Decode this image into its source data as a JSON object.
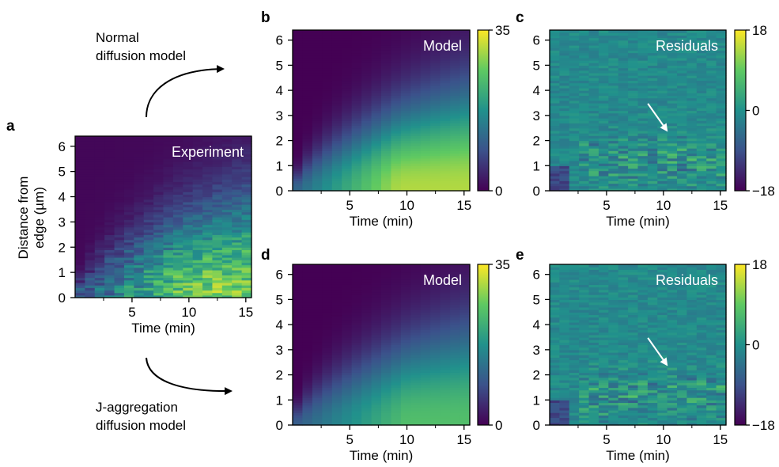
{
  "panel_labels": {
    "a": "a",
    "b": "b",
    "c": "c",
    "d": "d",
    "e": "e"
  },
  "annotations": {
    "normal_line1": "Normal",
    "normal_line2": "diffusion model",
    "jagg_line1": "J-aggregation",
    "jagg_line2": "diffusion model"
  },
  "colormap": "viridis",
  "colors": {
    "viridis_low": "#440154",
    "viridis_mid": "#21918c",
    "viridis_high": "#fde725",
    "arrow": "#ffffff",
    "text": "#000000"
  },
  "chart_data": [
    {
      "id": "a",
      "type": "heatmap",
      "title": "Experiment",
      "xlabel": "Time (min)",
      "ylabel_line1": "Distance from",
      "ylabel_line2": "edge (µm)",
      "xlim": [
        0,
        15.5
      ],
      "ylim": [
        0,
        6.4
      ],
      "xticks": [
        5,
        10,
        15
      ],
      "yticks": [
        0,
        1,
        2,
        3,
        4,
        5,
        6
      ],
      "colorbar": null
    },
    {
      "id": "b",
      "type": "heatmap",
      "title": "Model",
      "xlabel": "Time (min)",
      "xlim": [
        0,
        15.5
      ],
      "ylim": [
        0,
        6.4
      ],
      "xticks": [
        5,
        10,
        15
      ],
      "yticks": [
        0,
        1,
        2,
        3,
        4,
        5,
        6
      ],
      "colorbar": {
        "min": 0,
        "max": 35,
        "tick_labels": [
          "0",
          "35"
        ]
      }
    },
    {
      "id": "c",
      "type": "heatmap",
      "title": "Residuals",
      "xlabel": "Time (min)",
      "xlim": [
        0,
        15.5
      ],
      "ylim": [
        0,
        6.4
      ],
      "xticks": [
        5,
        10,
        15
      ],
      "yticks": [
        0,
        1,
        2,
        3,
        4,
        5,
        6
      ],
      "colorbar": {
        "min": -18,
        "max": 18,
        "tick_labels": [
          "−18",
          "0",
          "18"
        ]
      },
      "arrow_to": [
        10.3,
        2.4
      ]
    },
    {
      "id": "d",
      "type": "heatmap",
      "title": "Model",
      "xlabel": "Time (min)",
      "xlim": [
        0,
        15.5
      ],
      "ylim": [
        0,
        6.4
      ],
      "xticks": [
        5,
        10,
        15
      ],
      "yticks": [
        0,
        1,
        2,
        3,
        4,
        5,
        6
      ],
      "colorbar": {
        "min": 0,
        "max": 35,
        "tick_labels": [
          "0",
          "35"
        ]
      }
    },
    {
      "id": "e",
      "type": "heatmap",
      "title": "Residuals",
      "xlabel": "Time (min)",
      "xlim": [
        0,
        15.5
      ],
      "ylim": [
        0,
        6.4
      ],
      "xticks": [
        5,
        10,
        15
      ],
      "yticks": [
        0,
        1,
        2,
        3,
        4,
        5,
        6
      ],
      "colorbar": {
        "min": -18,
        "max": 18,
        "tick_labels": [
          "−18",
          "0",
          "18"
        ]
      },
      "arrow_to": [
        10.3,
        2.4
      ]
    }
  ]
}
